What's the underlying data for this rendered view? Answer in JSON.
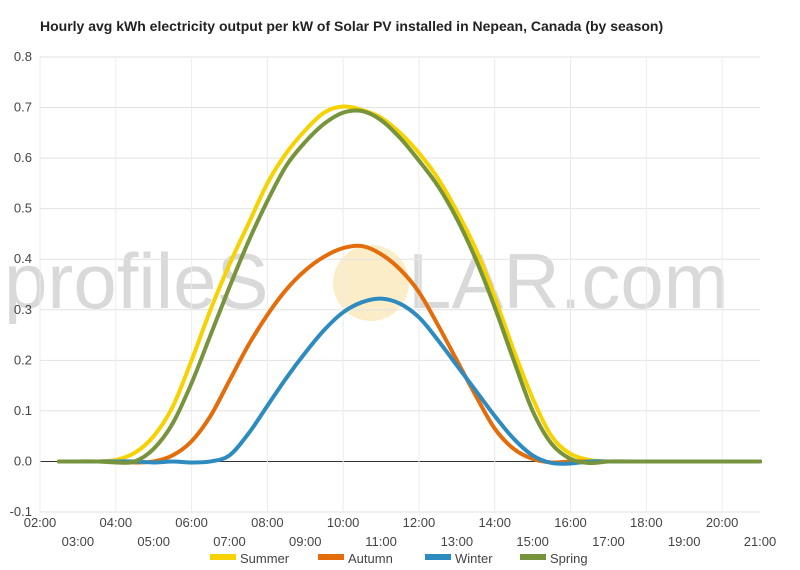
{
  "title": "Hourly avg kWh electricity output per kW of Solar PV installed in Nepean, Canada (by season)",
  "watermark": {
    "left": "profileS",
    "right": "LAR.com"
  },
  "chart_data": {
    "type": "line",
    "title": "Hourly avg kWh electricity output per kW of Solar PV installed in Nepean, Canada (by season)",
    "xlim": [
      2,
      21
    ],
    "ylim": [
      -0.1,
      0.8
    ],
    "yticks": [
      -0.1,
      0.0,
      0.1,
      0.2,
      0.3,
      0.4,
      0.5,
      0.6,
      0.7,
      0.8
    ],
    "ytick_labels": [
      "-0.1",
      "0.0",
      "0.1",
      "0.2",
      "0.3",
      "0.4",
      "0.5",
      "0.6",
      "0.7",
      "0.8"
    ],
    "xticks": [
      2,
      3,
      4,
      5,
      6,
      7,
      8,
      9,
      10,
      11,
      12,
      13,
      14,
      15,
      16,
      17,
      18,
      19,
      20,
      21
    ],
    "xtick_labels": [
      "02:00",
      "03:00",
      "04:00",
      "05:00",
      "06:00",
      "07:00",
      "08:00",
      "09:00",
      "10:00",
      "11:00",
      "12:00",
      "13:00",
      "14:00",
      "15:00",
      "16:00",
      "17:00",
      "18:00",
      "19:00",
      "20:00",
      "21:00"
    ],
    "grid": true,
    "legend_position": "bottom",
    "x": [
      2.5,
      3.0,
      3.5,
      4.0,
      4.5,
      5.0,
      5.5,
      6.0,
      6.5,
      7.0,
      7.5,
      8.0,
      8.5,
      9.0,
      9.5,
      10.0,
      10.5,
      11.0,
      11.5,
      12.0,
      12.5,
      13.0,
      13.5,
      14.0,
      14.5,
      15.0,
      15.5,
      16.0,
      16.5,
      17.0,
      17.5,
      18.0,
      18.5,
      19.0,
      19.5,
      20.0,
      20.5,
      21.0
    ],
    "series": [
      {
        "name": "Summer",
        "color": "#f5d200",
        "values": [
          0,
          0,
          0,
          0.003,
          0.017,
          0.05,
          0.108,
          0.2,
          0.3,
          0.39,
          0.47,
          0.55,
          0.61,
          0.655,
          0.69,
          0.702,
          0.695,
          0.68,
          0.65,
          0.61,
          0.56,
          0.495,
          0.42,
          0.325,
          0.22,
          0.125,
          0.05,
          0.015,
          0.003,
          0,
          0,
          0,
          0,
          0,
          0,
          0,
          0,
          0
        ]
      },
      {
        "name": "Autumn",
        "color": "#e46c0a",
        "values": [
          0,
          0,
          0,
          0,
          -0.002,
          0,
          0.012,
          0.04,
          0.09,
          0.16,
          0.23,
          0.29,
          0.34,
          0.378,
          0.405,
          0.422,
          0.426,
          0.41,
          0.38,
          0.335,
          0.27,
          0.2,
          0.13,
          0.065,
          0.025,
          0.005,
          -0.002,
          0,
          0,
          0,
          0,
          0,
          0,
          0,
          0,
          0,
          0,
          0
        ]
      },
      {
        "name": "Winter",
        "color": "#2e8bc0",
        "values": [
          0,
          0,
          0,
          0,
          0,
          -0.002,
          0,
          -0.002,
          0,
          0.012,
          0.055,
          0.11,
          0.165,
          0.215,
          0.26,
          0.295,
          0.315,
          0.322,
          0.312,
          0.285,
          0.24,
          0.19,
          0.14,
          0.09,
          0.045,
          0.012,
          -0.003,
          -0.004,
          0,
          0,
          0,
          0,
          0,
          0,
          0,
          0,
          0,
          0
        ]
      },
      {
        "name": "Spring",
        "color": "#77933c",
        "values": [
          0,
          0,
          0,
          -0.002,
          0,
          0.025,
          0.075,
          0.155,
          0.25,
          0.345,
          0.435,
          0.515,
          0.585,
          0.632,
          0.668,
          0.69,
          0.693,
          0.675,
          0.64,
          0.595,
          0.545,
          0.48,
          0.4,
          0.305,
          0.2,
          0.1,
          0.035,
          0.005,
          -0.003,
          0,
          0,
          0,
          0,
          0,
          0,
          0,
          0,
          0
        ]
      }
    ]
  }
}
